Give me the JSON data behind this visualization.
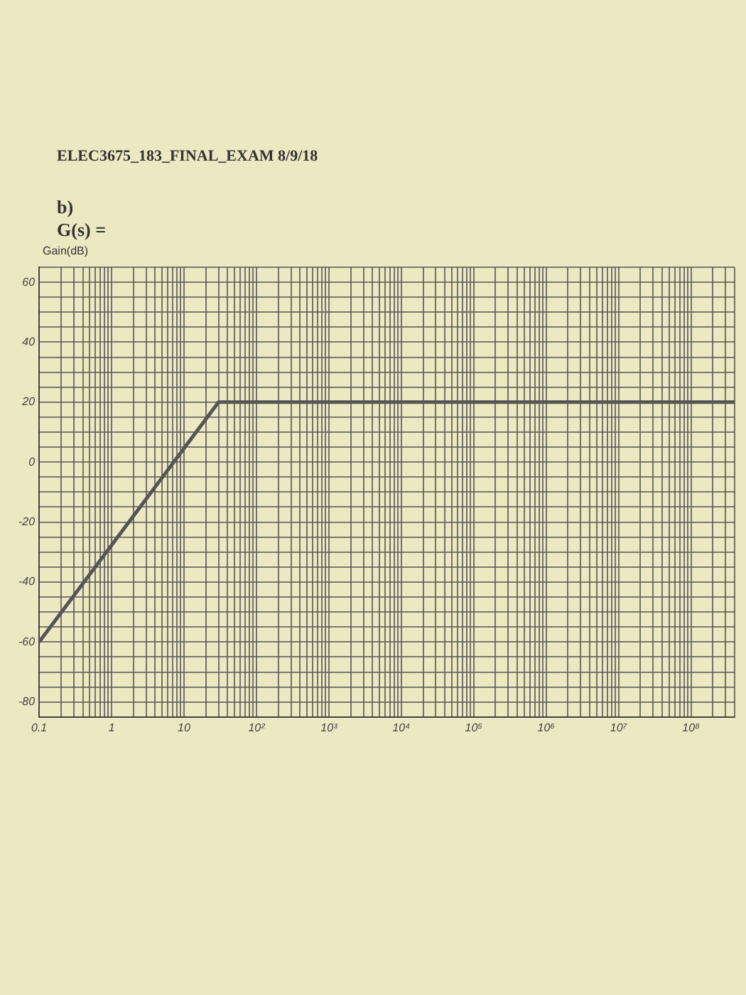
{
  "chart_data": {
    "type": "line",
    "title": "ELEC3675_183_FINAL_EXAM 8/9/18",
    "subtitle": "b)",
    "annotations": [
      "G(s) ="
    ],
    "ylabel": "Gain(dB)",
    "x": [
      0.1,
      30,
      400000000
    ],
    "series": [
      {
        "color": "#555555",
        "values": [
          -60,
          20,
          20
        ]
      }
    ],
    "xlim": [
      0.1,
      400000000
    ],
    "ylim": [
      -85,
      65
    ],
    "xticks": [
      {
        "value": 0.1,
        "label": "0.1"
      },
      {
        "value": 0.2,
        "label": null
      },
      {
        "value": 0.3,
        "label": null
      },
      {
        "value": 0.4,
        "label": null
      },
      {
        "value": 0.5,
        "label": null
      },
      {
        "value": 0.6,
        "label": null
      },
      {
        "value": 0.7,
        "label": null
      },
      {
        "value": 0.8,
        "label": null
      },
      {
        "value": 0.9,
        "label": null
      },
      {
        "value": 1,
        "label": "1"
      },
      {
        "value": 2,
        "label": null
      },
      {
        "value": 3,
        "label": null
      },
      {
        "value": 4,
        "label": null
      },
      {
        "value": 5,
        "label": null
      },
      {
        "value": 6,
        "label": null
      },
      {
        "value": 7,
        "label": null
      },
      {
        "value": 8,
        "label": null
      },
      {
        "value": 9,
        "label": null
      },
      {
        "value": 10,
        "label": "10"
      },
      {
        "value": 20,
        "label": null
      },
      {
        "value": 30,
        "label": null
      },
      {
        "value": 40,
        "label": null
      },
      {
        "value": 50,
        "label": null
      },
      {
        "value": 60,
        "label": null
      },
      {
        "value": 70,
        "label": null
      },
      {
        "value": 80,
        "label": null
      },
      {
        "value": 90,
        "label": null
      },
      {
        "value": 100,
        "label": "10²"
      },
      {
        "value": 200,
        "label": null
      },
      {
        "value": 300,
        "label": null
      },
      {
        "value": 400,
        "label": null
      },
      {
        "value": 500,
        "label": null
      },
      {
        "value": 600,
        "label": null
      },
      {
        "value": 700,
        "label": null
      },
      {
        "value": 800,
        "label": null
      },
      {
        "value": 900,
        "label": null
      },
      {
        "value": 1000,
        "label": "10³"
      },
      {
        "value": 2000,
        "label": null
      },
      {
        "value": 3000,
        "label": null
      },
      {
        "value": 4000,
        "label": null
      },
      {
        "value": 5000,
        "label": null
      },
      {
        "value": 6000,
        "label": null
      },
      {
        "value": 7000,
        "label": null
      },
      {
        "value": 8000,
        "label": null
      },
      {
        "value": 9000,
        "label": null
      },
      {
        "value": 10000,
        "label": "10⁴"
      },
      {
        "value": 20000,
        "label": null
      },
      {
        "value": 30000,
        "label": null
      },
      {
        "value": 40000,
        "label": null
      },
      {
        "value": 50000,
        "label": null
      },
      {
        "value": 60000,
        "label": null
      },
      {
        "value": 70000,
        "label": null
      },
      {
        "value": 80000,
        "label": null
      },
      {
        "value": 90000,
        "label": null
      },
      {
        "value": 100000,
        "label": "10⁵"
      },
      {
        "value": 200000,
        "label": null
      },
      {
        "value": 300000,
        "label": null
      },
      {
        "value": 400000,
        "label": null
      },
      {
        "value": 500000,
        "label": null
      },
      {
        "value": 600000,
        "label": null
      },
      {
        "value": 700000,
        "label": null
      },
      {
        "value": 800000,
        "label": null
      },
      {
        "value": 900000,
        "label": null
      },
      {
        "value": 1000000,
        "label": "10⁶"
      },
      {
        "value": 2000000,
        "label": null
      },
      {
        "value": 3000000,
        "label": null
      },
      {
        "value": 4000000,
        "label": null
      },
      {
        "value": 5000000,
        "label": null
      },
      {
        "value": 6000000,
        "label": null
      },
      {
        "value": 7000000,
        "label": null
      },
      {
        "value": 8000000,
        "label": null
      },
      {
        "value": 9000000,
        "label": null
      },
      {
        "value": 10000000,
        "label": "10⁷"
      },
      {
        "value": 20000000,
        "label": null
      },
      {
        "value": 30000000,
        "label": null
      },
      {
        "value": 40000000,
        "label": null
      },
      {
        "value": 50000000,
        "label": null
      },
      {
        "value": 60000000,
        "label": null
      },
      {
        "value": 70000000,
        "label": null
      },
      {
        "value": 80000000,
        "label": null
      },
      {
        "value": 90000000,
        "label": null
      },
      {
        "value": 100000000,
        "label": "10⁸"
      },
      {
        "value": 200000000,
        "label": null
      },
      {
        "value": 300000000,
        "label": null
      },
      {
        "value": 400000000,
        "label": null
      }
    ],
    "yticks": [
      {
        "value": -85,
        "label": null
      },
      -80,
      {
        "value": -75,
        "label": null
      },
      {
        "value": -70,
        "label": null
      },
      {
        "value": -65,
        "label": null
      },
      -60,
      {
        "value": -55,
        "label": null
      },
      {
        "value": -50,
        "label": null
      },
      {
        "value": -45,
        "label": null
      },
      -40,
      {
        "value": -35,
        "label": null
      },
      {
        "value": -30,
        "label": null
      },
      {
        "value": -25,
        "label": null
      },
      -20,
      {
        "value": -15,
        "label": null
      },
      {
        "value": -10,
        "label": null
      },
      {
        "value": -5,
        "label": null
      },
      0,
      {
        "value": 5,
        "label": null
      },
      {
        "value": 10,
        "label": null
      },
      {
        "value": 15,
        "label": null
      },
      20,
      {
        "value": 25,
        "label": null
      },
      {
        "value": 30,
        "label": null
      },
      {
        "value": 35,
        "label": null
      },
      40,
      {
        "value": 45,
        "label": null
      },
      {
        "value": 50,
        "label": null
      },
      {
        "value": 55,
        "label": null
      },
      60,
      {
        "value": 65,
        "label": null
      }
    ],
    "log": "x",
    "grid": true,
    "legend": false,
    "marker": "none",
    "line_style": "solid"
  }
}
